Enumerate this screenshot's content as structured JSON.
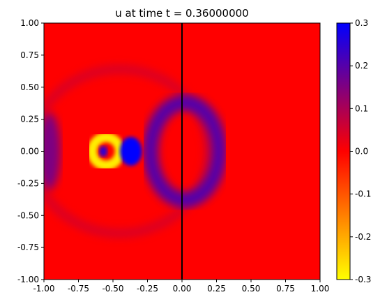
{
  "chart_data": {
    "type": "heatmap",
    "title": "u at time t =      0.36000000",
    "xlabel": "",
    "ylabel": "",
    "xlim": [
      -1.0,
      1.0
    ],
    "ylim": [
      -1.0,
      1.0
    ],
    "xticks": [
      "-1.00",
      "-0.75",
      "-0.50",
      "-0.25",
      "0.00",
      "0.25",
      "0.50",
      "0.75",
      "1.00"
    ],
    "yticks": [
      "-1.00",
      "-0.75",
      "-0.50",
      "-0.25",
      "0.00",
      "0.25",
      "0.50",
      "0.75",
      "1.00"
    ],
    "colorbar": {
      "range": [
        -0.3,
        0.3
      ],
      "ticks": [
        "-0.3",
        "-0.2",
        "-0.1",
        "0.0",
        "0.1",
        "0.2",
        "0.3"
      ],
      "colors": [
        "#ffff00",
        "#ff0000",
        "#0000ff"
      ]
    },
    "vertical_line_x": 0.0,
    "grid": false,
    "features": [
      {
        "shape": "outer-arc",
        "center": [
          -0.45,
          0.0
        ],
        "radius": 0.64,
        "value": 0.08
      },
      {
        "shape": "right-lobe",
        "center": [
          0.02,
          0.0
        ],
        "radius": 0.33,
        "value": 0.22
      },
      {
        "shape": "left-edge-lobe",
        "center": [
          -0.96,
          0.0
        ],
        "radius": 0.3,
        "value": 0.18
      },
      {
        "shape": "yellow-ring",
        "center": [
          -0.55,
          0.0
        ],
        "radius": 0.1,
        "value": -0.28
      },
      {
        "shape": "blue-core",
        "center": [
          -0.37,
          0.0
        ],
        "radius": 0.08,
        "value": 0.3
      },
      {
        "shape": "small-blue-dot",
        "center": [
          -0.57,
          0.0
        ],
        "radius": 0.03,
        "value": 0.25
      }
    ]
  }
}
